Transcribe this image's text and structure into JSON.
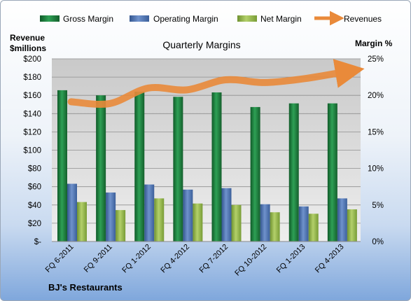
{
  "chart_data": {
    "type": "bar",
    "title": "Quarterly Margins",
    "ylabel_left": [
      "Revenue",
      "$millions"
    ],
    "ylabel_right": "Margin %",
    "company": "BJ's Restaurants",
    "categories": [
      "FQ 6-2011",
      "FQ 9-2011",
      "FQ 1-2012",
      "FQ 4-2012",
      "FQ 7-2012",
      "FQ 10-2012",
      "FQ 1-2013",
      "FQ 4-2013"
    ],
    "left_axis": {
      "min": 0,
      "max": 200,
      "step": 20,
      "ticks": [
        "$-",
        "$20",
        "$40",
        "$60",
        "$80",
        "$100",
        "$120",
        "$140",
        "$160",
        "$180",
        "$200"
      ]
    },
    "right_axis": {
      "min": 0,
      "max": 25,
      "step": 5,
      "ticks": [
        "0%",
        "5%",
        "10%",
        "15%",
        "20%",
        "25%"
      ]
    },
    "series": [
      {
        "name": "Gross Margin",
        "axis": "right",
        "color": "#1f7a3c",
        "values": [
          20.7,
          20.0,
          20.5,
          19.8,
          20.4,
          18.4,
          18.9,
          18.9
        ]
      },
      {
        "name": "Operating Margin",
        "axis": "right",
        "color": "#4a6fae",
        "values": [
          7.9,
          6.7,
          7.8,
          7.1,
          7.3,
          5.1,
          4.8,
          5.9
        ]
      },
      {
        "name": "Net Margin",
        "axis": "right",
        "color": "#8db043",
        "values": [
          5.4,
          4.3,
          5.9,
          5.2,
          5.0,
          4.0,
          3.8,
          4.4
        ]
      },
      {
        "name": "Revenues",
        "axis": "left",
        "type": "line",
        "color": "#e98a3a",
        "values": [
          153,
          151,
          168,
          166,
          177,
          174,
          178,
          185
        ]
      }
    ],
    "grid": true,
    "legend_position": "top"
  }
}
